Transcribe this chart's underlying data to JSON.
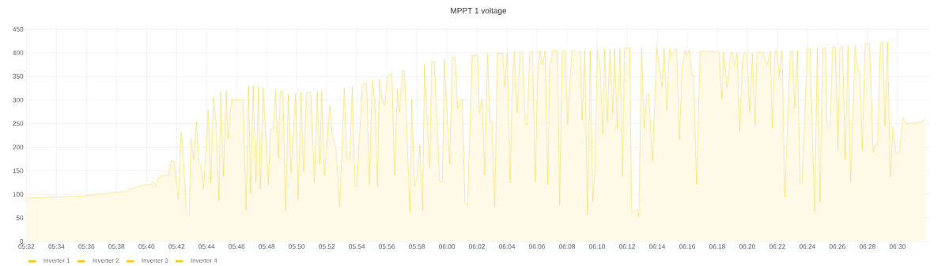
{
  "chart_data": {
    "type": "area",
    "title": "MPPT 1 voltage",
    "grid": true,
    "legend": "bottom",
    "marker": "none",
    "xlim": [
      5.533,
      6.537
    ],
    "ylim": [
      0,
      450
    ],
    "yticks": [
      0,
      50,
      100,
      150,
      200,
      250,
      300,
      350,
      400,
      450
    ],
    "xticks": [
      {
        "value": 5.5333,
        "label": "05:32"
      },
      {
        "value": 5.5667,
        "label": "05:34"
      },
      {
        "value": 5.6,
        "label": "05:36"
      },
      {
        "value": 5.6333,
        "label": "05:38"
      },
      {
        "value": 5.6667,
        "label": "05:40"
      },
      {
        "value": 5.7,
        "label": "05:42"
      },
      {
        "value": 5.7333,
        "label": "05:44"
      },
      {
        "value": 5.7667,
        "label": "05:46"
      },
      {
        "value": 5.8,
        "label": "05:48"
      },
      {
        "value": 5.8333,
        "label": "05:50"
      },
      {
        "value": 5.8667,
        "label": "05:52"
      },
      {
        "value": 5.9,
        "label": "05:54"
      },
      {
        "value": 5.9333,
        "label": "05:56"
      },
      {
        "value": 5.9667,
        "label": "05:58"
      },
      {
        "value": 6.0,
        "label": "06:00"
      },
      {
        "value": 6.0333,
        "label": "06:02"
      },
      {
        "value": 6.0667,
        "label": "06:04"
      },
      {
        "value": 6.1,
        "label": "06:06"
      },
      {
        "value": 6.1333,
        "label": "06:08"
      },
      {
        "value": 6.1667,
        "label": "06:10"
      },
      {
        "value": 6.2,
        "label": "06:12"
      },
      {
        "value": 6.2333,
        "label": "06:14"
      },
      {
        "value": 6.2667,
        "label": "06:16"
      },
      {
        "value": 6.3,
        "label": "06:18"
      },
      {
        "value": 6.3333,
        "label": "06:20"
      },
      {
        "value": 6.3667,
        "label": "06:22"
      },
      {
        "value": 6.4,
        "label": "06:24"
      },
      {
        "value": 6.4333,
        "label": "06:26"
      },
      {
        "value": 6.4667,
        "label": "06:28"
      },
      {
        "value": 6.5,
        "label": "06:30"
      }
    ],
    "series": [
      {
        "name": "Inverter 1",
        "color": "#f2cc0c"
      },
      {
        "name": "Inverter 2",
        "color": "#f2cc0c"
      },
      {
        "name": "Inverter 3",
        "color": "#f2cc0c",
        "x": [
          5.533,
          5.6,
          5.632,
          5.644,
          5.646,
          5.658,
          5.667,
          5.671,
          5.674,
          5.677,
          5.68,
          5.686,
          5.691,
          5.694,
          5.697,
          5.702,
          5.705,
          5.707,
          5.711,
          5.714,
          5.716,
          5.719,
          5.722,
          5.725,
          5.727,
          5.73,
          5.735,
          5.738,
          5.741,
          5.744,
          5.747,
          5.749,
          5.752,
          5.755,
          5.757,
          5.761,
          5.774,
          5.777,
          5.78,
          5.782,
          5.785,
          5.788,
          5.791,
          5.793,
          5.796,
          5.802,
          5.804,
          5.807,
          5.81,
          5.813,
          5.815,
          5.818,
          5.821,
          5.824,
          5.827,
          5.832,
          5.835,
          5.838,
          5.841,
          5.844,
          5.849,
          5.853,
          5.856,
          5.859,
          5.861,
          5.864,
          5.87,
          5.873,
          5.877,
          5.881,
          5.886,
          5.889,
          5.892,
          5.895,
          5.898,
          5.9,
          5.906,
          5.911,
          5.914,
          5.917,
          5.92,
          5.923,
          5.925,
          5.928,
          5.931,
          5.934,
          5.939,
          5.942,
          5.945,
          5.947,
          5.951,
          5.953,
          5.959,
          5.961,
          5.964,
          5.967,
          5.97,
          5.973,
          5.975,
          5.981,
          5.983,
          5.986,
          5.992,
          5.995,
          5.997,
          6.003,
          6.006,
          6.009,
          6.012,
          6.017,
          6.02,
          6.023,
          6.028,
          6.034,
          6.036,
          6.039,
          6.042,
          6.045,
          6.048,
          6.05,
          6.053,
          6.056,
          6.062,
          6.064,
          6.067,
          6.07,
          6.073,
          6.075,
          6.078,
          6.081,
          6.084,
          6.087,
          6.089,
          6.092,
          6.095,
          6.098,
          6.101,
          6.103,
          6.106,
          6.109,
          6.112,
          6.114,
          6.117,
          6.123,
          6.125,
          6.128,
          6.131,
          6.134,
          6.137,
          6.139,
          6.142,
          6.145,
          6.148,
          6.15,
          6.153,
          6.156,
          6.159,
          6.162,
          6.164,
          6.167,
          6.17,
          6.173,
          6.175,
          6.178,
          6.181,
          6.184,
          6.186,
          6.189,
          6.192,
          6.195,
          6.197,
          6.203,
          6.205,
          6.208,
          6.211,
          6.213,
          6.216,
          6.219,
          6.222,
          6.224,
          6.228,
          6.233,
          6.239,
          6.241,
          6.244,
          6.247,
          6.25,
          6.253,
          6.255,
          6.258,
          6.261,
          6.264,
          6.266,
          6.269,
          6.272,
          6.274,
          6.277,
          6.281,
          6.302,
          6.305,
          6.307,
          6.311,
          6.315,
          6.317,
          6.319,
          6.322,
          6.325,
          6.328,
          6.33,
          6.333,
          6.336,
          6.339,
          6.342,
          6.344,
          6.351,
          6.355,
          6.359,
          6.361,
          6.364,
          6.366,
          6.369,
          6.372,
          6.375,
          6.381,
          6.383,
          6.386,
          6.389,
          6.392,
          6.394,
          6.4,
          6.403,
          6.406,
          6.408,
          6.411,
          6.414,
          6.417,
          6.42,
          6.422,
          6.425,
          6.428,
          6.431,
          6.434,
          6.436,
          6.439,
          6.442,
          6.445,
          6.448,
          6.453,
          6.456,
          6.458,
          6.461,
          6.464,
          6.469,
          6.473,
          6.475,
          6.478,
          6.481,
          6.484,
          6.486,
          6.489,
          6.492,
          6.495,
          6.498,
          6.502,
          6.506,
          6.511,
          6.514,
          6.52,
          6.523,
          6.526,
          6.531
        ],
        "values": [
          92,
          97,
          104,
          106,
          110,
          117,
          121,
          120,
          128,
          116,
          136,
          141,
          141,
          171,
          171,
          91,
          233,
          197,
          55,
          55,
          219,
          173,
          254,
          164,
          163,
          111,
          279,
          125,
          305,
          249,
          87,
          317,
          140,
          320,
          219,
          300,
          300,
          68,
          330,
          102,
          329,
          126,
          329,
          111,
          326,
          120,
          239,
          239,
          320,
          177,
          318,
          318,
          65,
          313,
          146,
          315,
          91,
          315,
          148,
          316,
          316,
          126,
          317,
          164,
          318,
          141,
          288,
          222,
          199,
          74,
          326,
          174,
          174,
          329,
          117,
          117,
          333,
          336,
          120,
          340,
          300,
          117,
          344,
          302,
          288,
          350,
          356,
          140,
          322,
          274,
          362,
          362,
          62,
          301,
          116,
          140,
          206,
          66,
          375,
          156,
          381,
          381,
          127,
          127,
          386,
          166,
          390,
          390,
          282,
          302,
          79,
          79,
          395,
          395,
          273,
          301,
          140,
          397,
          255,
          255,
          73,
          399,
          399,
          329,
          400,
          124,
          361,
          401,
          273,
          402,
          402,
          252,
          247,
          402,
          402,
          126,
          373,
          404,
          375,
          404,
          121,
          369,
          404,
          404,
          76,
          405,
          405,
          248,
          356,
          405,
          405,
          400,
          405,
          257,
          406,
          57,
          406,
          85,
          144,
          406,
          372,
          229,
          408,
          252,
          408,
          273,
          408,
          238,
          409,
          139,
          410,
          410,
          63,
          63,
          68,
          52,
          410,
          240,
          312,
          312,
          170,
          410,
          327,
          410,
          278,
          408,
          393,
          408,
          408,
          216,
          369,
          406,
          394,
          406,
          352,
          352,
          121,
          404,
          401,
          302,
          401,
          326,
          400,
          400,
          373,
          400,
          233,
          388,
          400,
          400,
          274,
          400,
          249,
          400,
          401,
          373,
          403,
          241,
          404,
          404,
          350,
          404,
          95,
          405,
          405,
          283,
          405,
          124,
          124,
          408,
          408,
          199,
          63,
          410,
          84,
          410,
          410,
          241,
          241,
          412,
          412,
          194,
          413,
          413,
          174,
          415,
          128,
          416,
          363,
          363,
          194,
          419,
          420,
          189,
          206,
          206,
          422,
          422,
          245,
          423,
          138,
          244,
          188,
          187,
          262,
          248,
          252,
          249,
          254,
          252,
          261
        ]
      },
      {
        "name": "Inverter 4",
        "color": "#f2cc0c"
      }
    ]
  }
}
